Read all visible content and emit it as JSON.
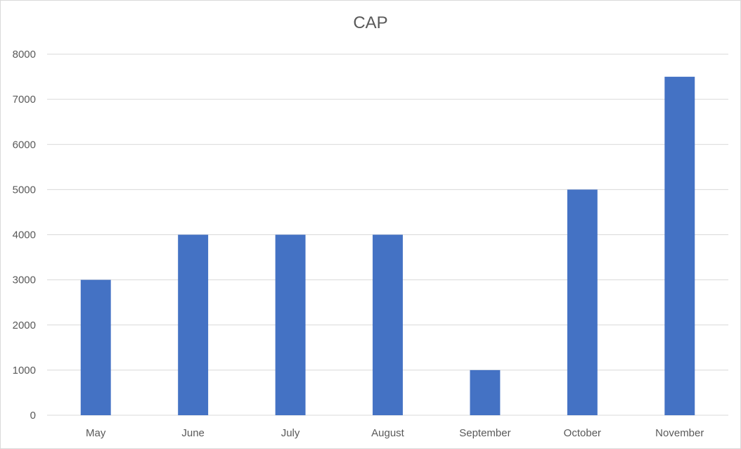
{
  "chart_data": {
    "type": "bar",
    "title": "CAP",
    "xlabel": "",
    "ylabel": "",
    "categories": [
      "May",
      "June",
      "July",
      "August",
      "September",
      "October",
      "November"
    ],
    "series": [
      {
        "values": [
          3000,
          4000,
          4000,
          4000,
          1000,
          5000,
          7500
        ]
      }
    ],
    "ylim": [
      0,
      8000
    ],
    "yticks": [
      0,
      1000,
      2000,
      3000,
      4000,
      5000,
      6000,
      7000,
      8000
    ],
    "grid": true,
    "legend": "none",
    "colors": {
      "bar": "#4472c4",
      "grid": "#d9d9d9",
      "text": "#595959"
    }
  }
}
